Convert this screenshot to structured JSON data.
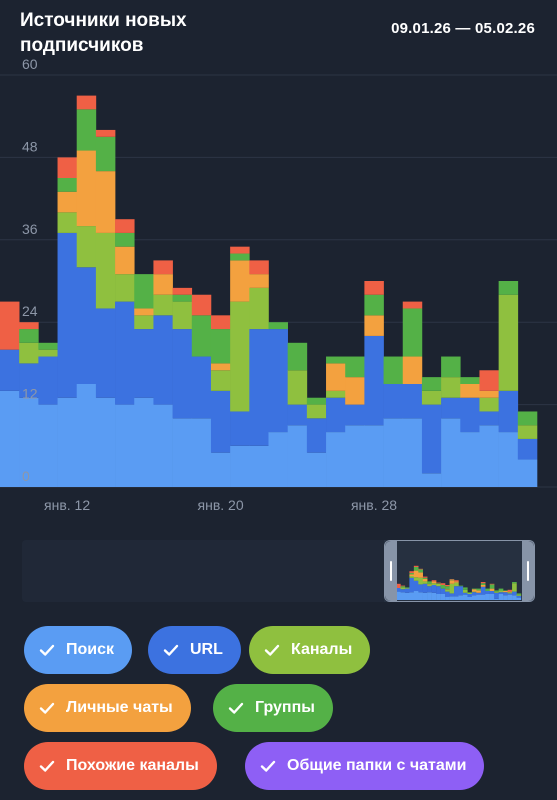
{
  "header": {
    "title": "Источники новых подписчиков",
    "date_range": "09.01.26 — 05.02.26"
  },
  "colors": {
    "background": "#1c2330",
    "navigator_background": "#263040",
    "grid": "#2c3545",
    "axis_text": "#8d97a8"
  },
  "legend": [
    {
      "label": "Поиск",
      "color": "#5a9cf3",
      "icon": "check-icon"
    },
    {
      "label": "URL",
      "color": "#3c72e0",
      "icon": "check-icon"
    },
    {
      "label": "Каналы",
      "color": "#8fc03f",
      "icon": "check-icon"
    },
    {
      "label": "Личные чаты",
      "color": "#f3a13f",
      "icon": "check-icon"
    },
    {
      "label": "Группы",
      "color": "#54b147",
      "icon": "check-icon"
    },
    {
      "label": "Похожие каналы",
      "color": "#ef6045",
      "icon": "check-icon"
    },
    {
      "label": "Общие папки с чатами",
      "color": "#8e5ff5",
      "icon": "check-icon"
    }
  ],
  "chart_data": {
    "type": "bar",
    "stacked": true,
    "y_ticks": [
      "0",
      "12",
      "24",
      "36",
      "48",
      "60"
    ],
    "ylim": [
      0,
      60
    ],
    "x_tick_labels": [
      {
        "label": "янв. 12",
        "index": 3
      },
      {
        "label": "янв. 20",
        "index": 11
      },
      {
        "label": "янв. 28",
        "index": 19
      }
    ],
    "grid": true,
    "categories": [
      "09.01",
      "10.01",
      "11.01",
      "12.01",
      "13.01",
      "14.01",
      "15.01",
      "16.01",
      "17.01",
      "18.01",
      "19.01",
      "20.01",
      "21.01",
      "22.01",
      "23.01",
      "24.01",
      "25.01",
      "26.01",
      "27.01",
      "28.01",
      "29.01",
      "30.01",
      "31.01",
      "01.02",
      "02.02",
      "03.02",
      "04.02",
      "05.02"
    ],
    "series": [
      {
        "name": "Поиск",
        "values": [
          14,
          13,
          12,
          13,
          15,
          13,
          12,
          13,
          12,
          10,
          10,
          5,
          6,
          6,
          8,
          9,
          5,
          8,
          9,
          9,
          10,
          10,
          2,
          10,
          8,
          9,
          8,
          4
        ]
      },
      {
        "name": "URL",
        "values": [
          6,
          5,
          7,
          24,
          17,
          13,
          15,
          10,
          13,
          13,
          9,
          9,
          5,
          17,
          15,
          3,
          5,
          5,
          3,
          13,
          5,
          5,
          10,
          3,
          5,
          2,
          6,
          3
        ]
      },
      {
        "name": "Каналы",
        "values": [
          0,
          3,
          1,
          3,
          6,
          11,
          4,
          2,
          3,
          4,
          0,
          3,
          16,
          6,
          0,
          5,
          2,
          1,
          0,
          0,
          0,
          0,
          2,
          3,
          0,
          2,
          14,
          2
        ]
      },
      {
        "name": "Личные чаты",
        "values": [
          0,
          0,
          0,
          3,
          11,
          9,
          4,
          1,
          3,
          0,
          0,
          1,
          6,
          2,
          0,
          0,
          0,
          4,
          4,
          3,
          0,
          4,
          0,
          0,
          2,
          1,
          0,
          0
        ]
      },
      {
        "name": "Группы",
        "values": [
          0,
          2,
          1,
          2,
          6,
          5,
          2,
          5,
          0,
          1,
          6,
          5,
          1,
          0,
          1,
          4,
          1,
          1,
          3,
          3,
          4,
          7,
          2,
          3,
          1,
          0,
          2,
          2
        ]
      },
      {
        "name": "Похожие каналы",
        "values": [
          7,
          1,
          0,
          3,
          2,
          1,
          2,
          0,
          2,
          1,
          3,
          2,
          1,
          2,
          0,
          0,
          0,
          0,
          0,
          2,
          0,
          1,
          0,
          0,
          0,
          3,
          0,
          0
        ]
      },
      {
        "name": "Общие папки с чатами",
        "values": [
          0,
          0,
          0,
          0,
          0,
          0,
          0,
          0,
          0,
          0,
          0,
          0,
          0,
          0,
          0,
          0,
          0,
          0,
          0,
          0,
          0,
          0,
          0,
          0,
          0,
          0,
          0,
          0
        ]
      }
    ]
  }
}
